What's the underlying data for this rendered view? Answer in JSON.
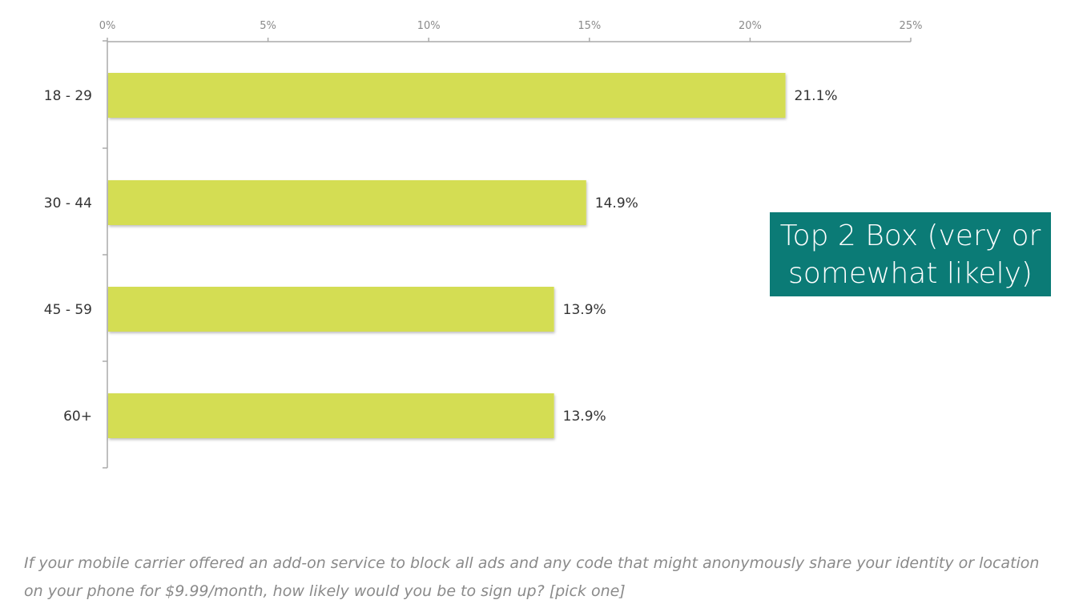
{
  "chart_data": {
    "type": "bar",
    "orientation": "horizontal",
    "categories": [
      "18 - 29",
      "30 - 44",
      "45 - 59",
      "60+"
    ],
    "values": [
      21.1,
      14.9,
      13.9,
      13.9
    ],
    "value_labels": [
      "21.1%",
      "14.9%",
      "13.9%",
      "13.9%"
    ],
    "xlim": [
      0,
      25
    ],
    "x_ticks": [
      0,
      5,
      10,
      15,
      20,
      25
    ],
    "x_tick_labels": [
      "0%",
      "5%",
      "10%",
      "15%",
      "20%",
      "25%"
    ],
    "axis_position": "top",
    "grid": false,
    "bar_color": "#d4dd52"
  },
  "callout": {
    "text": "Top 2 Box (very or somewhat likely)",
    "background": "#0b7b76"
  },
  "question": {
    "line1": "If your mobile carrier offered an add-on service to block all ads and any code that might anonymously share your identity or location",
    "line2": "on your phone for $9.99/month, how likely would you be to sign up? [pick one]"
  }
}
